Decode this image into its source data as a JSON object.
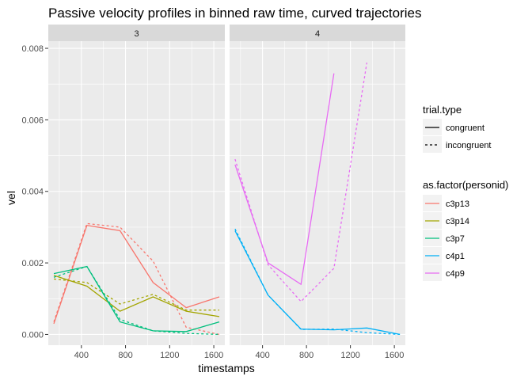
{
  "chart_data": {
    "type": "line",
    "title": "Passive velocity profiles in binned raw time, curved trajectories",
    "xlabel": "timestamps",
    "ylabel": "vel",
    "xlim": [
      100,
      1700
    ],
    "ylim": [
      -0.0003,
      0.0082
    ],
    "x_ticks": [
      400,
      800,
      1200,
      1600
    ],
    "y_ticks": [
      0.0,
      0.002,
      0.004,
      0.006,
      0.008
    ],
    "y_tick_labels": [
      "0.000",
      "0.002",
      "0.004",
      "0.006",
      "0.008"
    ],
    "grid": true,
    "background": "#ebebeb",
    "strip_fill": "#d9d9d9",
    "panels": [
      {
        "label": "3",
        "series": [
          {
            "name": "c3p13",
            "trial_type": "congruent",
            "color": "#f8766d",
            "x": [
              150,
              450,
              750,
              1050,
              1350,
              1650
            ],
            "values": [
              0.0003,
              0.00305,
              0.0029,
              0.00145,
              0.00075,
              0.00105
            ]
          },
          {
            "name": "c3p13",
            "trial_type": "incongruent",
            "color": "#f8766d",
            "x": [
              150,
              450,
              750,
              1050,
              1350,
              1650
            ],
            "values": [
              0.00035,
              0.0031,
              0.003,
              0.00205,
              0.0002,
              0.0
            ]
          },
          {
            "name": "c3p14",
            "trial_type": "congruent",
            "color": "#a3a500",
            "x": [
              150,
              450,
              750,
              1050,
              1350,
              1650
            ],
            "values": [
              0.00165,
              0.00135,
              0.00065,
              0.00105,
              0.00065,
              0.0005
            ]
          },
          {
            "name": "c3p14",
            "trial_type": "incongruent",
            "color": "#a3a500",
            "x": [
              150,
              450,
              750,
              1050,
              1350,
              1650
            ],
            "values": [
              0.00155,
              0.00145,
              0.00085,
              0.00112,
              0.00068,
              0.00068
            ]
          },
          {
            "name": "c3p7",
            "trial_type": "congruent",
            "color": "#00bf7d",
            "x": [
              150,
              450,
              750,
              1050,
              1350,
              1650
            ],
            "values": [
              0.0017,
              0.0019,
              0.00035,
              0.0001,
              8e-05,
              0.00035
            ]
          },
          {
            "name": "c3p7",
            "trial_type": "incongruent",
            "color": "#00bf7d",
            "x": [
              150,
              450,
              750,
              1050,
              1350,
              1650
            ],
            "values": [
              0.0016,
              0.0019,
              0.00042,
              0.0001,
              3e-05,
              0.0
            ]
          }
        ]
      },
      {
        "label": "4",
        "series": [
          {
            "name": "c4p1",
            "trial_type": "congruent",
            "color": "#00b0f6",
            "x": [
              150,
              450,
              750,
              1050,
              1350,
              1650
            ],
            "values": [
              0.0029,
              0.0011,
              0.00015,
              0.00013,
              0.00018,
              0.0
            ]
          },
          {
            "name": "c4p1",
            "trial_type": "incongruent",
            "color": "#00b0f6",
            "x": [
              150,
              450,
              750,
              1050,
              1350,
              1650
            ],
            "values": [
              0.00295,
              0.0011,
              0.00014,
              0.00015,
              5e-05,
              0.0
            ]
          },
          {
            "name": "c4p9",
            "trial_type": "congruent",
            "color": "#e76bf3",
            "x": [
              150,
              450,
              750,
              1050
            ],
            "values": [
              0.00475,
              0.002,
              0.0014,
              0.0073
            ]
          },
          {
            "name": "c4p9",
            "trial_type": "incongruent",
            "color": "#e76bf3",
            "x": [
              150,
              450,
              750,
              1050,
              1350
            ],
            "values": [
              0.0049,
              0.00195,
              0.00092,
              0.00185,
              0.0076
            ]
          }
        ]
      }
    ],
    "legend": {
      "placement": "right",
      "linetype_title": "trial.type",
      "linetype_entries": [
        {
          "label": "congruent",
          "style": "solid"
        },
        {
          "label": "incongruent",
          "style": "dashed"
        }
      ],
      "color_title": "as.factor(personid)",
      "color_entries": [
        {
          "label": "c3p13",
          "color": "#f8766d"
        },
        {
          "label": "c3p14",
          "color": "#a3a500"
        },
        {
          "label": "c3p7",
          "color": "#00bf7d"
        },
        {
          "label": "c4p1",
          "color": "#00b0f6"
        },
        {
          "label": "c4p9",
          "color": "#e76bf3"
        }
      ]
    }
  }
}
